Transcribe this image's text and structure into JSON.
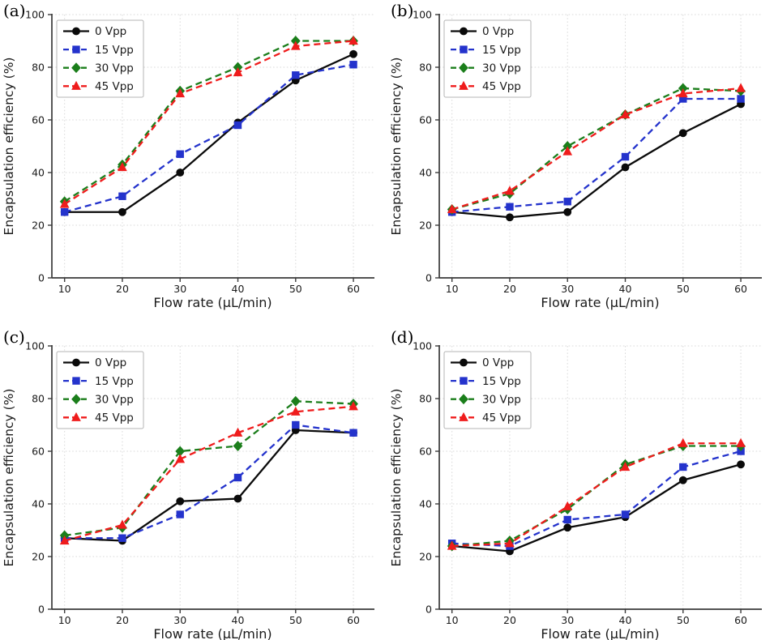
{
  "figure": {
    "background": "#ffffff",
    "axis_color": "#3a3a3a",
    "grid_color": "#d9d9d9",
    "text_color": "#1a1a1a",
    "legend_border_color": "#b4b4b4",
    "xlabel": "Flow rate (μL/min)",
    "ylabel": "Encapsulation efficiency (%)",
    "x_ticks": [
      10,
      20,
      30,
      40,
      50,
      60
    ],
    "y_ticks": [
      0,
      20,
      40,
      60,
      80,
      100
    ],
    "xlim": [
      7.8,
      63.5
    ],
    "ylim": [
      0,
      100
    ],
    "grid": true,
    "legend_position": "upper-left",
    "series_styles": [
      {
        "name": "0 Vpp",
        "color": "#0a0a0a",
        "marker": "circle",
        "line": "solid"
      },
      {
        "name": "15 Vpp",
        "color": "#2433cc",
        "marker": "square",
        "line": "dashed"
      },
      {
        "name": "30 Vpp",
        "color": "#1b7e1b",
        "marker": "diamond",
        "line": "dashed"
      },
      {
        "name": "45 Vpp",
        "color": "#ef1c1c",
        "marker": "triangle",
        "line": "dashed"
      }
    ]
  },
  "chart_data": [
    {
      "type": "line",
      "panel_label": "(a)",
      "xlabel": "Flow rate (μL/min)",
      "ylabel": "Encapsulation efficiency (%)",
      "x": [
        10,
        20,
        30,
        40,
        50,
        60
      ],
      "ylim": [
        0,
        100
      ],
      "legend": [
        "0 Vpp",
        "15 Vpp",
        "30 Vpp",
        "45 Vpp"
      ],
      "series": [
        {
          "name": "0 Vpp",
          "values": [
            25,
            25,
            40,
            59,
            75,
            85
          ]
        },
        {
          "name": "15 Vpp",
          "values": [
            25,
            31,
            47,
            58,
            77,
            81
          ]
        },
        {
          "name": "30 Vpp",
          "values": [
            29,
            43,
            71,
            80,
            90,
            90
          ]
        },
        {
          "name": "45 Vpp",
          "values": [
            28,
            42,
            70,
            78,
            88,
            90
          ]
        }
      ]
    },
    {
      "type": "line",
      "panel_label": "(b)",
      "xlabel": "Flow rate (μL/min)",
      "ylabel": "Encapsulation efficiency (%)",
      "x": [
        10,
        20,
        30,
        40,
        50,
        60
      ],
      "ylim": [
        0,
        100
      ],
      "legend": [
        "0 Vpp",
        "15 Vpp",
        "30 Vpp",
        "45 Vpp"
      ],
      "series": [
        {
          "name": "0 Vpp",
          "values": [
            25,
            23,
            25,
            42,
            55,
            66
          ]
        },
        {
          "name": "15 Vpp",
          "values": [
            25,
            27,
            29,
            46,
            68,
            68
          ]
        },
        {
          "name": "30 Vpp",
          "values": [
            26,
            32,
            50,
            62,
            72,
            71
          ]
        },
        {
          "name": "45 Vpp",
          "values": [
            26,
            33,
            48,
            62,
            70,
            72
          ]
        }
      ]
    },
    {
      "type": "line",
      "panel_label": "(c)",
      "xlabel": "Flow rate (μL/min)",
      "ylabel": "Encapsulation efficiency (%)",
      "x": [
        10,
        20,
        30,
        40,
        50,
        60
      ],
      "ylim": [
        0,
        100
      ],
      "legend": [
        "0 Vpp",
        "15 Vpp",
        "30 Vpp",
        "45 Vpp"
      ],
      "series": [
        {
          "name": "0 Vpp",
          "values": [
            27,
            26,
            41,
            42,
            68,
            67
          ]
        },
        {
          "name": "15 Vpp",
          "values": [
            27,
            27,
            36,
            50,
            70,
            67
          ]
        },
        {
          "name": "30 Vpp",
          "values": [
            28,
            31,
            60,
            62,
            79,
            78
          ]
        },
        {
          "name": "45 Vpp",
          "values": [
            26,
            32,
            57,
            67,
            75,
            77
          ]
        }
      ]
    },
    {
      "type": "line",
      "panel_label": "(d)",
      "xlabel": "Flow rate (μL/min)",
      "ylabel": "Encapsulation efficiency (%)",
      "x": [
        10,
        20,
        30,
        40,
        50,
        60
      ],
      "ylim": [
        0,
        100
      ],
      "legend": [
        "0 Vpp",
        "15 Vpp",
        "30 Vpp",
        "45 Vpp"
      ],
      "series": [
        {
          "name": "0 Vpp",
          "values": [
            24,
            22,
            31,
            35,
            49,
            55
          ]
        },
        {
          "name": "15 Vpp",
          "values": [
            25,
            24,
            34,
            36,
            54,
            60
          ]
        },
        {
          "name": "30 Vpp",
          "values": [
            24,
            26,
            38,
            55,
            62,
            62
          ]
        },
        {
          "name": "45 Vpp",
          "values": [
            24,
            25,
            39,
            54,
            63,
            63
          ]
        }
      ]
    }
  ]
}
